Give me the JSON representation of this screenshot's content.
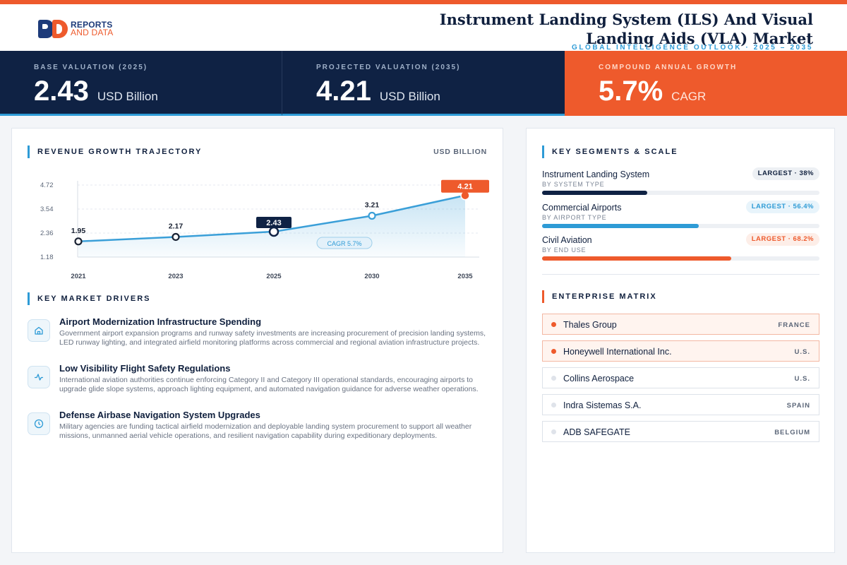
{
  "brand": {
    "line1": "REPORTS",
    "line2": "AND DATA"
  },
  "header": {
    "title": "Instrument Landing System (ILS) And Visual Landing Aids (VLA) Market",
    "subtitle": "GLOBAL INTELLIGENCE OUTLOOK  ·  2025 – 2035"
  },
  "stats": [
    {
      "label": "BASE VALUATION (2025)",
      "value": "2.43",
      "unit": "USD Billion"
    },
    {
      "label": "PROJECTED VALUATION (2035)",
      "value": "4.21",
      "unit": "USD Billion"
    },
    {
      "label": "COMPOUND ANNUAL GROWTH",
      "value": "5.7%",
      "unit": "CAGR"
    }
  ],
  "revenue": {
    "heading": "REVENUE GROWTH TRAJECTORY",
    "unit": "USD BILLION"
  },
  "chart_data": {
    "type": "area",
    "x": [
      "2021",
      "2023",
      "2025",
      "2030",
      "2035"
    ],
    "values": [
      1.95,
      2.17,
      2.43,
      3.21,
      4.21
    ],
    "value_labels": [
      "1.95",
      "2.17",
      "2.43",
      "3.21",
      "4.21"
    ],
    "y_ticks": [
      "4.72",
      "3.54",
      "2.36",
      "1.18"
    ],
    "ylim": [
      1.18,
      4.72
    ],
    "highlight": {
      "base_index": 2,
      "projected_index": 4
    },
    "annotation": "CAGR 5.7%",
    "grid": true,
    "line_color": "#3a9fd8",
    "base_color": "#0f2244",
    "projected_color": "#ee5a2c"
  },
  "drivers": {
    "heading": "KEY MARKET DRIVERS",
    "items": [
      {
        "icon": "building-icon",
        "title": "Airport Modernization Infrastructure Spending",
        "body": "Government airport expansion programs and runway safety investments are increasing procurement of precision landing systems, LED runway lighting, and integrated airfield monitoring platforms across commercial and regional aviation infrastructure projects."
      },
      {
        "icon": "pulse-icon",
        "title": "Low Visibility Flight Safety Regulations",
        "body": "International aviation authorities continue enforcing Category II and Category III operational standards, encouraging airports to upgrade glide slope systems, approach lighting equipment, and automated navigation guidance for adverse weather operations."
      },
      {
        "icon": "clock-icon",
        "title": "Defense Airbase Navigation System Upgrades",
        "body": "Military agencies are funding tactical airfield modernization and deployable landing system procurement to support all weather missions, unmanned aerial vehicle operations, and resilient navigation capability during expeditionary deployments."
      }
    ]
  },
  "segments": {
    "heading": "KEY SEGMENTS & SCALE",
    "items": [
      {
        "name": "Instrument Landing System",
        "sub": "BY SYSTEM TYPE",
        "badge": "LARGEST · 38%",
        "share": 0.38,
        "color": "#0f2244",
        "badge_bg": "#edf0f4",
        "badge_fg": "#0f1f3d"
      },
      {
        "name": "Commercial Airports",
        "sub": "BY AIRPORT TYPE",
        "badge": "LARGEST · 56.4%",
        "share": 0.564,
        "color": "#2e9bd6",
        "badge_bg": "#e8f4fb",
        "badge_fg": "#2e9bd6"
      },
      {
        "name": "Civil Aviation",
        "sub": "BY END USE",
        "badge": "LARGEST · 68.2%",
        "share": 0.682,
        "color": "#ee5a2c",
        "badge_bg": "#fdeee8",
        "badge_fg": "#ee5a2c"
      }
    ]
  },
  "enterprise": {
    "heading": "ENTERPRISE MATRIX",
    "items": [
      {
        "name": "Thales Group",
        "country": "FRANCE",
        "highlight": true
      },
      {
        "name": "Honeywell International Inc.",
        "country": "U.S.",
        "highlight": true
      },
      {
        "name": "Collins Aerospace",
        "country": "U.S.",
        "highlight": false
      },
      {
        "name": "Indra Sistemas S.A.",
        "country": "SPAIN",
        "highlight": false
      },
      {
        "name": "ADB SAFEGATE",
        "country": "BELGIUM",
        "highlight": false
      }
    ]
  }
}
